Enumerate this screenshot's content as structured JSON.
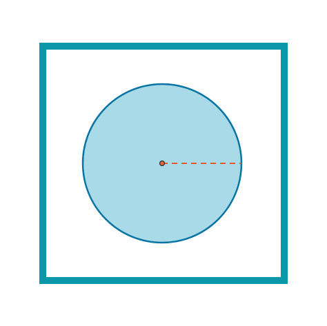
{
  "diagram": {
    "shapes": [
      {
        "kind": "square",
        "name": "outer-square"
      },
      {
        "kind": "circle",
        "name": "inscribed-circle"
      },
      {
        "kind": "point",
        "name": "circle-center"
      },
      {
        "kind": "segment",
        "name": "radius",
        "style": "dashed"
      }
    ]
  },
  "colors": {
    "square_stroke": "#0a97a8",
    "circle_fill": "#a8dbe7",
    "circle_stroke": "#0a74a4",
    "center_dot_fill": "#e4683a",
    "center_dot_stroke": "#1f2d33",
    "radius_stroke": "#e4582a",
    "background": "#ffffff"
  }
}
